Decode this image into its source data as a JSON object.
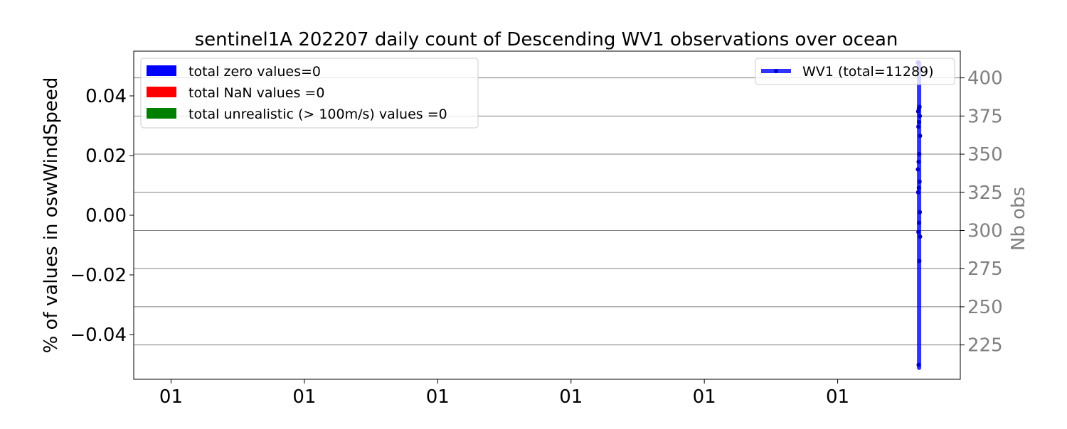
{
  "chart_data": {
    "type": "line",
    "title": "sentinel1A 202207 daily count of Descending WV1 observations over ocean",
    "left_axis": {
      "ylabel": "% of values in oswWindSpeed",
      "ylim": [
        -0.055,
        0.055
      ],
      "ticks": [
        -0.04,
        -0.02,
        0.0,
        0.02,
        0.04
      ],
      "tick_labels": [
        "−0.04",
        "−0.02",
        "0.00",
        "0.02",
        "0.04"
      ]
    },
    "right_axis": {
      "ylabel": "Nb obs",
      "ylim": [
        202.5,
        417.5
      ],
      "ticks": [
        225,
        250,
        275,
        300,
        325,
        350,
        375,
        400
      ],
      "tick_labels": [
        "225",
        "250",
        "275",
        "300",
        "325",
        "350",
        "375",
        "400"
      ],
      "color": "#808080",
      "grid": true
    },
    "x_axis": {
      "tick_labels": [
        "01",
        "01",
        "01",
        "01",
        "01",
        "01"
      ],
      "xlim": [
        0,
        6.2
      ],
      "tick_positions": [
        0.28,
        1.28,
        2.28,
        3.28,
        4.28,
        5.28
      ]
    },
    "bar_legend": {
      "position": "upper left",
      "entries": [
        {
          "label": "total zero values=0",
          "color": "#0000ff"
        },
        {
          "label": "total NaN values =0",
          "color": "#ff0000"
        },
        {
          "label": "total unrealistic (> 100m/s) values =0",
          "color": "#008000"
        }
      ]
    },
    "series": [
      {
        "name": "WV1 (total=11289)",
        "axis": "right",
        "color": "#0000ff",
        "x_range": [
          5.882,
          5.9
        ],
        "y_range": [
          210,
          410
        ],
        "marker_values": [
          410,
          381,
          380,
          378,
          375,
          371,
          368,
          362,
          350,
          345,
          340,
          332,
          328,
          325,
          312,
          305,
          299,
          296,
          280,
          212
        ]
      }
    ]
  }
}
